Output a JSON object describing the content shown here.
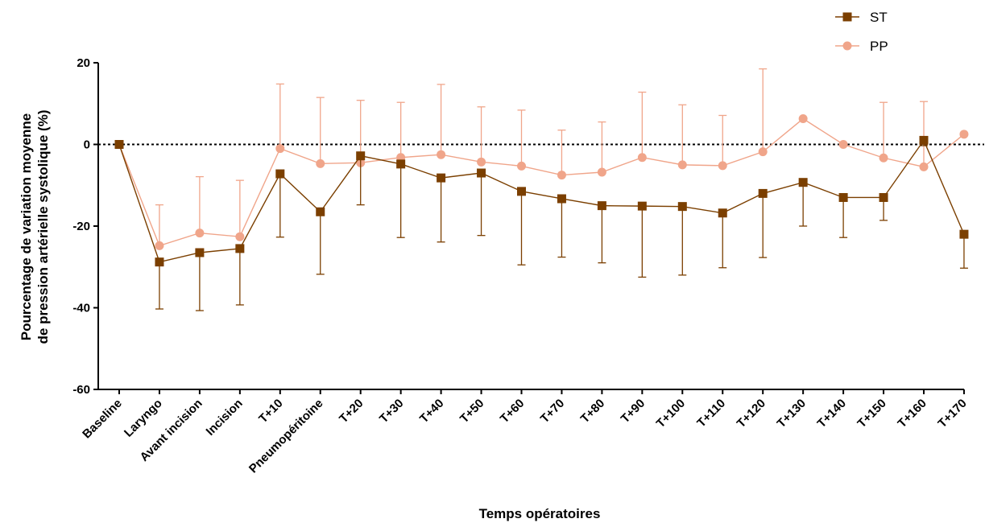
{
  "chart_data": {
    "type": "line",
    "xlabel": "Temps opératoires",
    "ylabel": [
      "Pourcentage de variation moyenne",
      "de pression artérielle systolique (%)"
    ],
    "ylim": [
      -60,
      20
    ],
    "yticks": [
      20,
      0,
      -20,
      -40,
      -60
    ],
    "ytick_labels": [
      "20",
      "0",
      "-20",
      "-40",
      "-60"
    ],
    "reference_line": 0,
    "legend_position": "top-right",
    "categories": [
      "Baseline",
      "Laryngo",
      "Avant incision",
      "Incision",
      "T+10",
      "Pneumopéritoine",
      "T+20",
      "T+30",
      "T+40",
      "T+50",
      "T+60",
      "T+70",
      "T+80",
      "T+90",
      "T+100",
      "T+110",
      "T+120",
      "T+130",
      "T+140",
      "T+150",
      "T+160",
      "T+170"
    ],
    "series": [
      {
        "name": "ST",
        "color": "#7B3F00",
        "marker": "square",
        "error_direction": "down",
        "values": [
          0,
          -28.8,
          -26.5,
          -25.5,
          -7.2,
          -16.5,
          -2.8,
          -4.8,
          -8.2,
          -7.0,
          -11.5,
          -13.3,
          -15.0,
          -15.1,
          -15.2,
          -16.8,
          -12.0,
          -9.3,
          -13.0,
          -13.0,
          1.0,
          -22.0
        ],
        "error": [
          0,
          11.5,
          14.2,
          13.8,
          15.5,
          15.3,
          12.0,
          18.0,
          15.7,
          15.3,
          18.0,
          14.3,
          14.0,
          17.4,
          16.8,
          13.4,
          15.7,
          10.7,
          9.8,
          5.6,
          1.3,
          8.3
        ]
      },
      {
        "name": "PP",
        "color": "#F0A58A",
        "marker": "circle",
        "error_direction": "up",
        "values": [
          0,
          -24.8,
          -21.7,
          -22.6,
          -1.0,
          -4.7,
          -4.5,
          -3.2,
          -2.5,
          -4.3,
          -5.3,
          -7.5,
          -6.8,
          -3.2,
          -5.0,
          -5.2,
          -1.8,
          6.3,
          0,
          -3.3,
          -5.5,
          2.5
        ],
        "error": [
          0,
          10.0,
          13.8,
          13.8,
          15.8,
          16.2,
          15.3,
          13.5,
          17.2,
          13.5,
          13.7,
          11.0,
          12.3,
          16.0,
          14.7,
          12.3,
          20.3,
          0,
          0,
          13.6,
          16.0,
          0
        ]
      }
    ]
  }
}
